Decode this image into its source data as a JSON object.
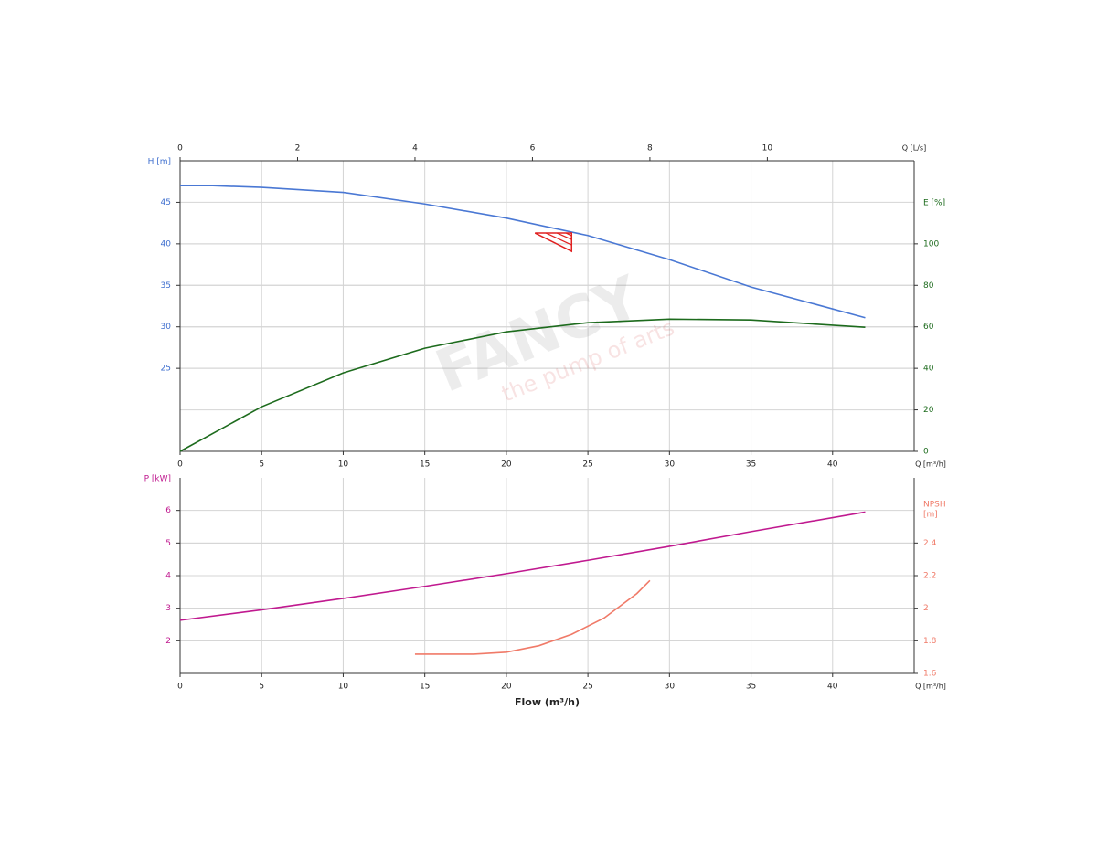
{
  "chart_data": [
    {
      "type": "line",
      "xlabel": "Q [m³/h]",
      "xlim": [
        0,
        45
      ],
      "xticks": [
        0,
        5,
        10,
        15,
        20,
        25,
        30,
        35,
        40
      ],
      "x2label": "Q [L/s]",
      "x2lim": [
        0,
        12.5
      ],
      "x2ticks": [
        0,
        2,
        4,
        6,
        8,
        10
      ],
      "ylabel": "H [m]",
      "ylim": [
        15,
        50
      ],
      "yticks": [
        25,
        30,
        35,
        40,
        45
      ],
      "ycolor": "#3f6fcf",
      "y2label": [
        "E [%]"
      ],
      "y2lim": [
        0,
        140
      ],
      "y2ticks": [
        0,
        20,
        40,
        60,
        80,
        100
      ],
      "y2color": "#1d6b1d",
      "grid": true,
      "series": [
        {
          "color": "#4a78d4",
          "x": [
            0,
            2,
            5,
            10,
            15,
            20,
            25,
            30,
            35,
            42
          ],
          "values": [
            47,
            47,
            46.8,
            46.2,
            44.8,
            43.1,
            41,
            38.1,
            34.8,
            31.1
          ]
        },
        {
          "color": "#1d6b1d",
          "axis": "y2",
          "x": [
            0,
            5,
            10,
            15,
            20,
            25,
            30,
            35,
            42
          ],
          "values": [
            0,
            21.5,
            37.8,
            49.7,
            57.6,
            62,
            63.7,
            63.3,
            59.8
          ]
        }
      ],
      "duty_point": {
        "x": 24,
        "y": 41.3,
        "color": "#e02020"
      },
      "watermark": [
        "FANCY",
        "the pump of arts"
      ]
    },
    {
      "type": "line",
      "xlabel": "Q [m³/h]",
      "xlim": [
        0,
        45
      ],
      "xticks": [
        0,
        5,
        10,
        15,
        20,
        25,
        30,
        35,
        40
      ],
      "xaxis_title": "Flow (m³/h)",
      "ylabel": "P [kW]",
      "ylim": [
        1,
        7
      ],
      "yticks": [
        2,
        3,
        4,
        5,
        6
      ],
      "ycolor": "#c0198f",
      "y2label": [
        "NPSH",
        "[m]"
      ],
      "y2lim": [
        1.6,
        2.8
      ],
      "y2ticks": [
        1.6,
        1.8,
        2,
        2.2,
        2.4
      ],
      "y2color": "#f07a68",
      "grid": true,
      "series": [
        {
          "color": "#c0198f",
          "x": [
            0,
            5,
            10,
            15,
            20,
            25,
            30,
            35,
            42
          ],
          "values": [
            2.63,
            2.95,
            3.3,
            3.67,
            4.06,
            4.47,
            4.9,
            5.35,
            5.95
          ]
        },
        {
          "color": "#f07a68",
          "axis": "y2",
          "x": [
            14.4,
            18,
            20,
            22,
            24,
            26,
            28,
            28.8
          ],
          "values": [
            1.718,
            1.718,
            1.73,
            1.77,
            1.84,
            1.94,
            2.09,
            2.17
          ]
        }
      ]
    }
  ]
}
